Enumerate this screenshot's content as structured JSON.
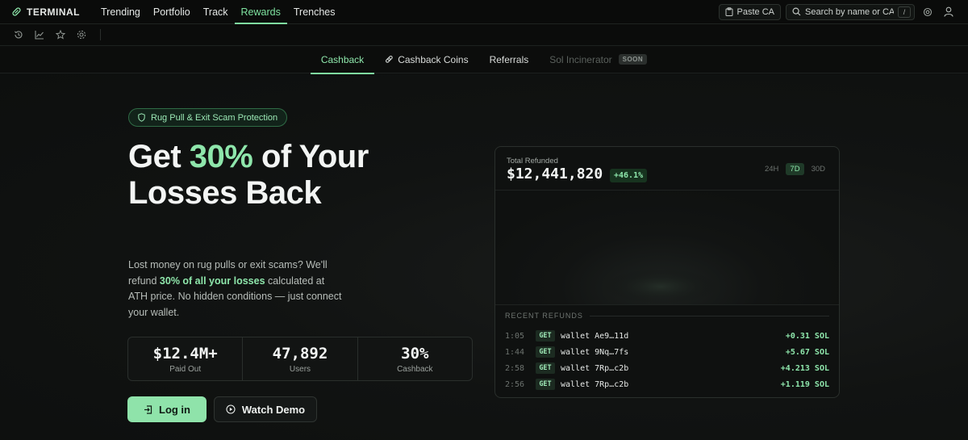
{
  "colors": {
    "accent": "#8ee6ab",
    "background": "#0d0f0e"
  },
  "topbar": {
    "brand": "TERMINAL",
    "nav": [
      {
        "label": "Trending"
      },
      {
        "label": "Portfolio"
      },
      {
        "label": "Track"
      },
      {
        "label": "Rewards",
        "active": true
      },
      {
        "label": "Trenches"
      }
    ],
    "paste_label": "Paste CA",
    "search_placeholder": "Search by name or CA...",
    "search_shortcut": "/"
  },
  "toolbar": {
    "icons": [
      "history-icon",
      "chart-icon",
      "star-icon",
      "gear-icon"
    ]
  },
  "subtabs": [
    {
      "label": "Cashback",
      "active": true
    },
    {
      "label": "Cashback Coins",
      "icon": "link-icon"
    },
    {
      "label": "Referrals"
    },
    {
      "label": "Sol Incinerator",
      "disabled": true,
      "badge": "SOON"
    }
  ],
  "hero": {
    "badge": "Rug Pull & Exit Scam Protection",
    "headline_pre": "Get ",
    "headline_accent": "30%",
    "headline_post": " of Your Losses Back",
    "desc_1": "Lost money on rug pulls or exit scams? We'll refund ",
    "desc_strong": "30% of all your losses",
    "desc_2": " calculated at ATH price. No hidden conditions — just connect your wallet.",
    "stats": [
      {
        "value": "$12.4M+",
        "label": "Paid Out"
      },
      {
        "value": "47,892",
        "label": "Users"
      },
      {
        "value": "30%",
        "label": "Cashback"
      }
    ],
    "login_label": "Log in",
    "demo_label": "Watch Demo"
  },
  "panel": {
    "label": "Total Refunded",
    "value": "$12,441,820",
    "change": "+46.1%",
    "ranges": [
      {
        "label": "24H"
      },
      {
        "label": "7D",
        "active": true
      },
      {
        "label": "30D"
      }
    ],
    "recent_title": "RECENT REFUNDS",
    "recent": [
      {
        "time": "1:05",
        "tag": "GET",
        "wallet": "wallet Ae9…11d",
        "amount": "+0.31 SOL"
      },
      {
        "time": "1:44",
        "tag": "GET",
        "wallet": "wallet 9Nq…7fs",
        "amount": "+5.67 SOL"
      },
      {
        "time": "2:58",
        "tag": "GET",
        "wallet": "wallet 7Rp…c2b",
        "amount": "+4.213 SOL"
      },
      {
        "time": "2:56",
        "tag": "GET",
        "wallet": "wallet 7Rp…c2b",
        "amount": "+1.119 SOL"
      }
    ]
  }
}
